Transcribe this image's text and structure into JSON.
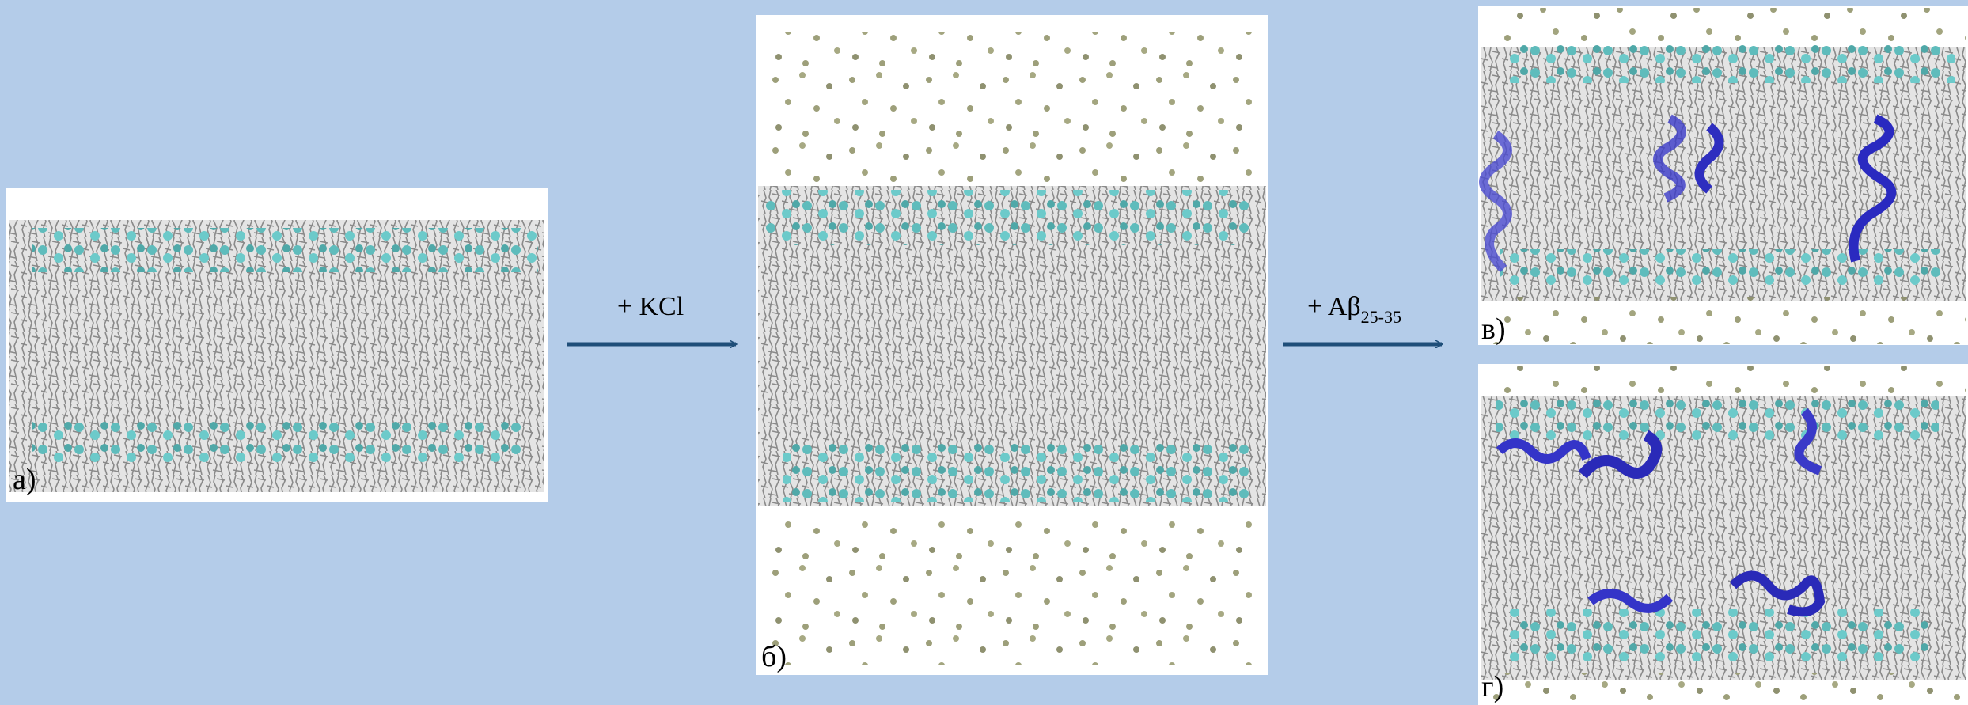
{
  "panels": [
    {
      "label": "а)"
    },
    {
      "label": "б)"
    },
    {
      "label": "в)"
    },
    {
      "label": "г)"
    }
  ],
  "arrows": [
    {
      "label": "+ KCl"
    },
    {
      "label": "+ Aβ",
      "subscript": "25-35"
    }
  ]
}
